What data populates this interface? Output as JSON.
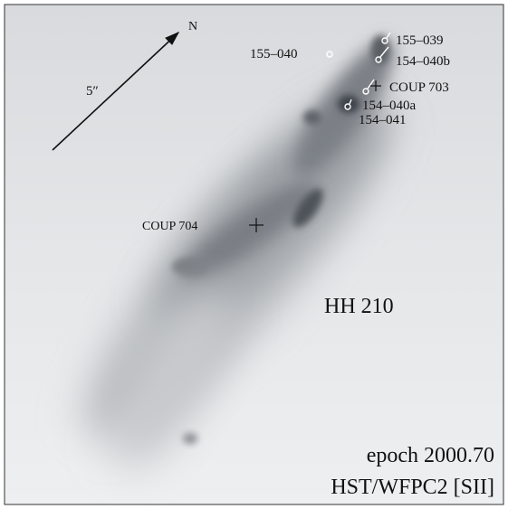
{
  "image": {
    "compass": "N",
    "scale": "5″",
    "sources": [
      "155–040",
      "155–039",
      "154–040b",
      "COUP 703",
      "154–040a",
      "154–041",
      "COUP 704"
    ],
    "object": "HH 210",
    "epoch": "epoch 2000.70",
    "instrument": "HST/WFPC2 [SII]"
  }
}
